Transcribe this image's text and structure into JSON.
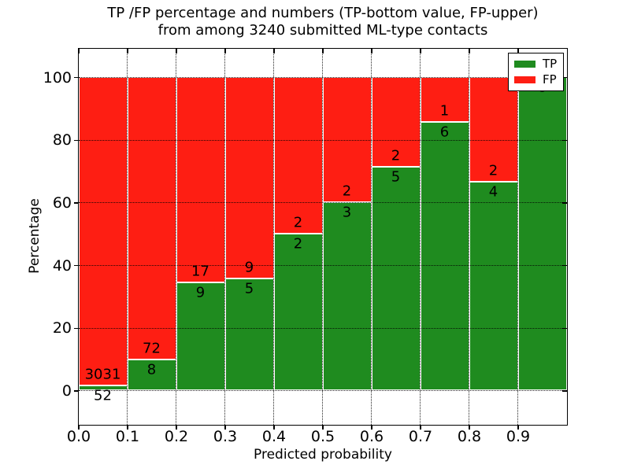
{
  "title": {
    "line1": "TP /FP percentage and numbers (TP-bottom value, FP-upper)",
    "line2": "from among 3240 submitted ML-type contacts"
  },
  "axes": {
    "xlabel": "Predicted probability",
    "ylabel": "Percentage",
    "xtick_labels": [
      "0.0",
      "0.1",
      "0.2",
      "0.3",
      "0.4",
      "0.5",
      "0.6",
      "0.7",
      "0.8",
      "0.9"
    ],
    "xtick_values": [
      0.0,
      0.1,
      0.2,
      0.3,
      0.4,
      0.5,
      0.6,
      0.7,
      0.8,
      0.9
    ],
    "ytick_labels": [
      "0",
      "20",
      "40",
      "60",
      "80",
      "100"
    ],
    "ytick_values": [
      0,
      20,
      40,
      60,
      80,
      100
    ],
    "xlim": [
      0.0,
      1.0
    ],
    "ylim": [
      -10.8,
      109.2
    ]
  },
  "legend": {
    "position": "upper right",
    "entries": [
      {
        "label": "TP",
        "color": "#1f8b1f"
      },
      {
        "label": "FP",
        "color": "#fe1e13"
      }
    ]
  },
  "colors": {
    "tp": "#1f8b1f",
    "fp": "#fe1e13",
    "grid": "#000000",
    "frame": "#000000",
    "background": "#ffffff",
    "bar_edge": "#ffffff"
  },
  "chart_data": {
    "type": "bar",
    "stacked": true,
    "normalized": "each bin stacked to 100%",
    "title": "TP /FP percentage and numbers (TP-bottom value, FP-upper) from among 3240 submitted ML-type contacts",
    "xlabel": "Predicted probability",
    "ylabel": "Percentage",
    "total_contacts": 3240,
    "bin_width": 0.1,
    "categories": [
      "0.0-0.1",
      "0.1-0.2",
      "0.2-0.3",
      "0.3-0.4",
      "0.4-0.5",
      "0.5-0.6",
      "0.6-0.7",
      "0.7-0.8",
      "0.8-0.9",
      "0.9-1.0"
    ],
    "series": [
      {
        "name": "TP",
        "color": "#1f8b1f",
        "counts": [
          52,
          8,
          9,
          5,
          2,
          3,
          5,
          6,
          4,
          8
        ]
      },
      {
        "name": "FP",
        "color": "#fe1e13",
        "counts": [
          3031,
          72,
          17,
          9,
          2,
          2,
          2,
          1,
          2,
          0
        ]
      }
    ],
    "tp_percent": [
      1.7,
      10.0,
      34.6,
      35.7,
      50.0,
      60.0,
      71.4,
      85.7,
      66.7,
      100.0
    ],
    "grid": true,
    "legend_position": "upper right",
    "ylim": [
      -10.8,
      109.2
    ],
    "xlim": [
      0.0,
      1.0
    ]
  }
}
